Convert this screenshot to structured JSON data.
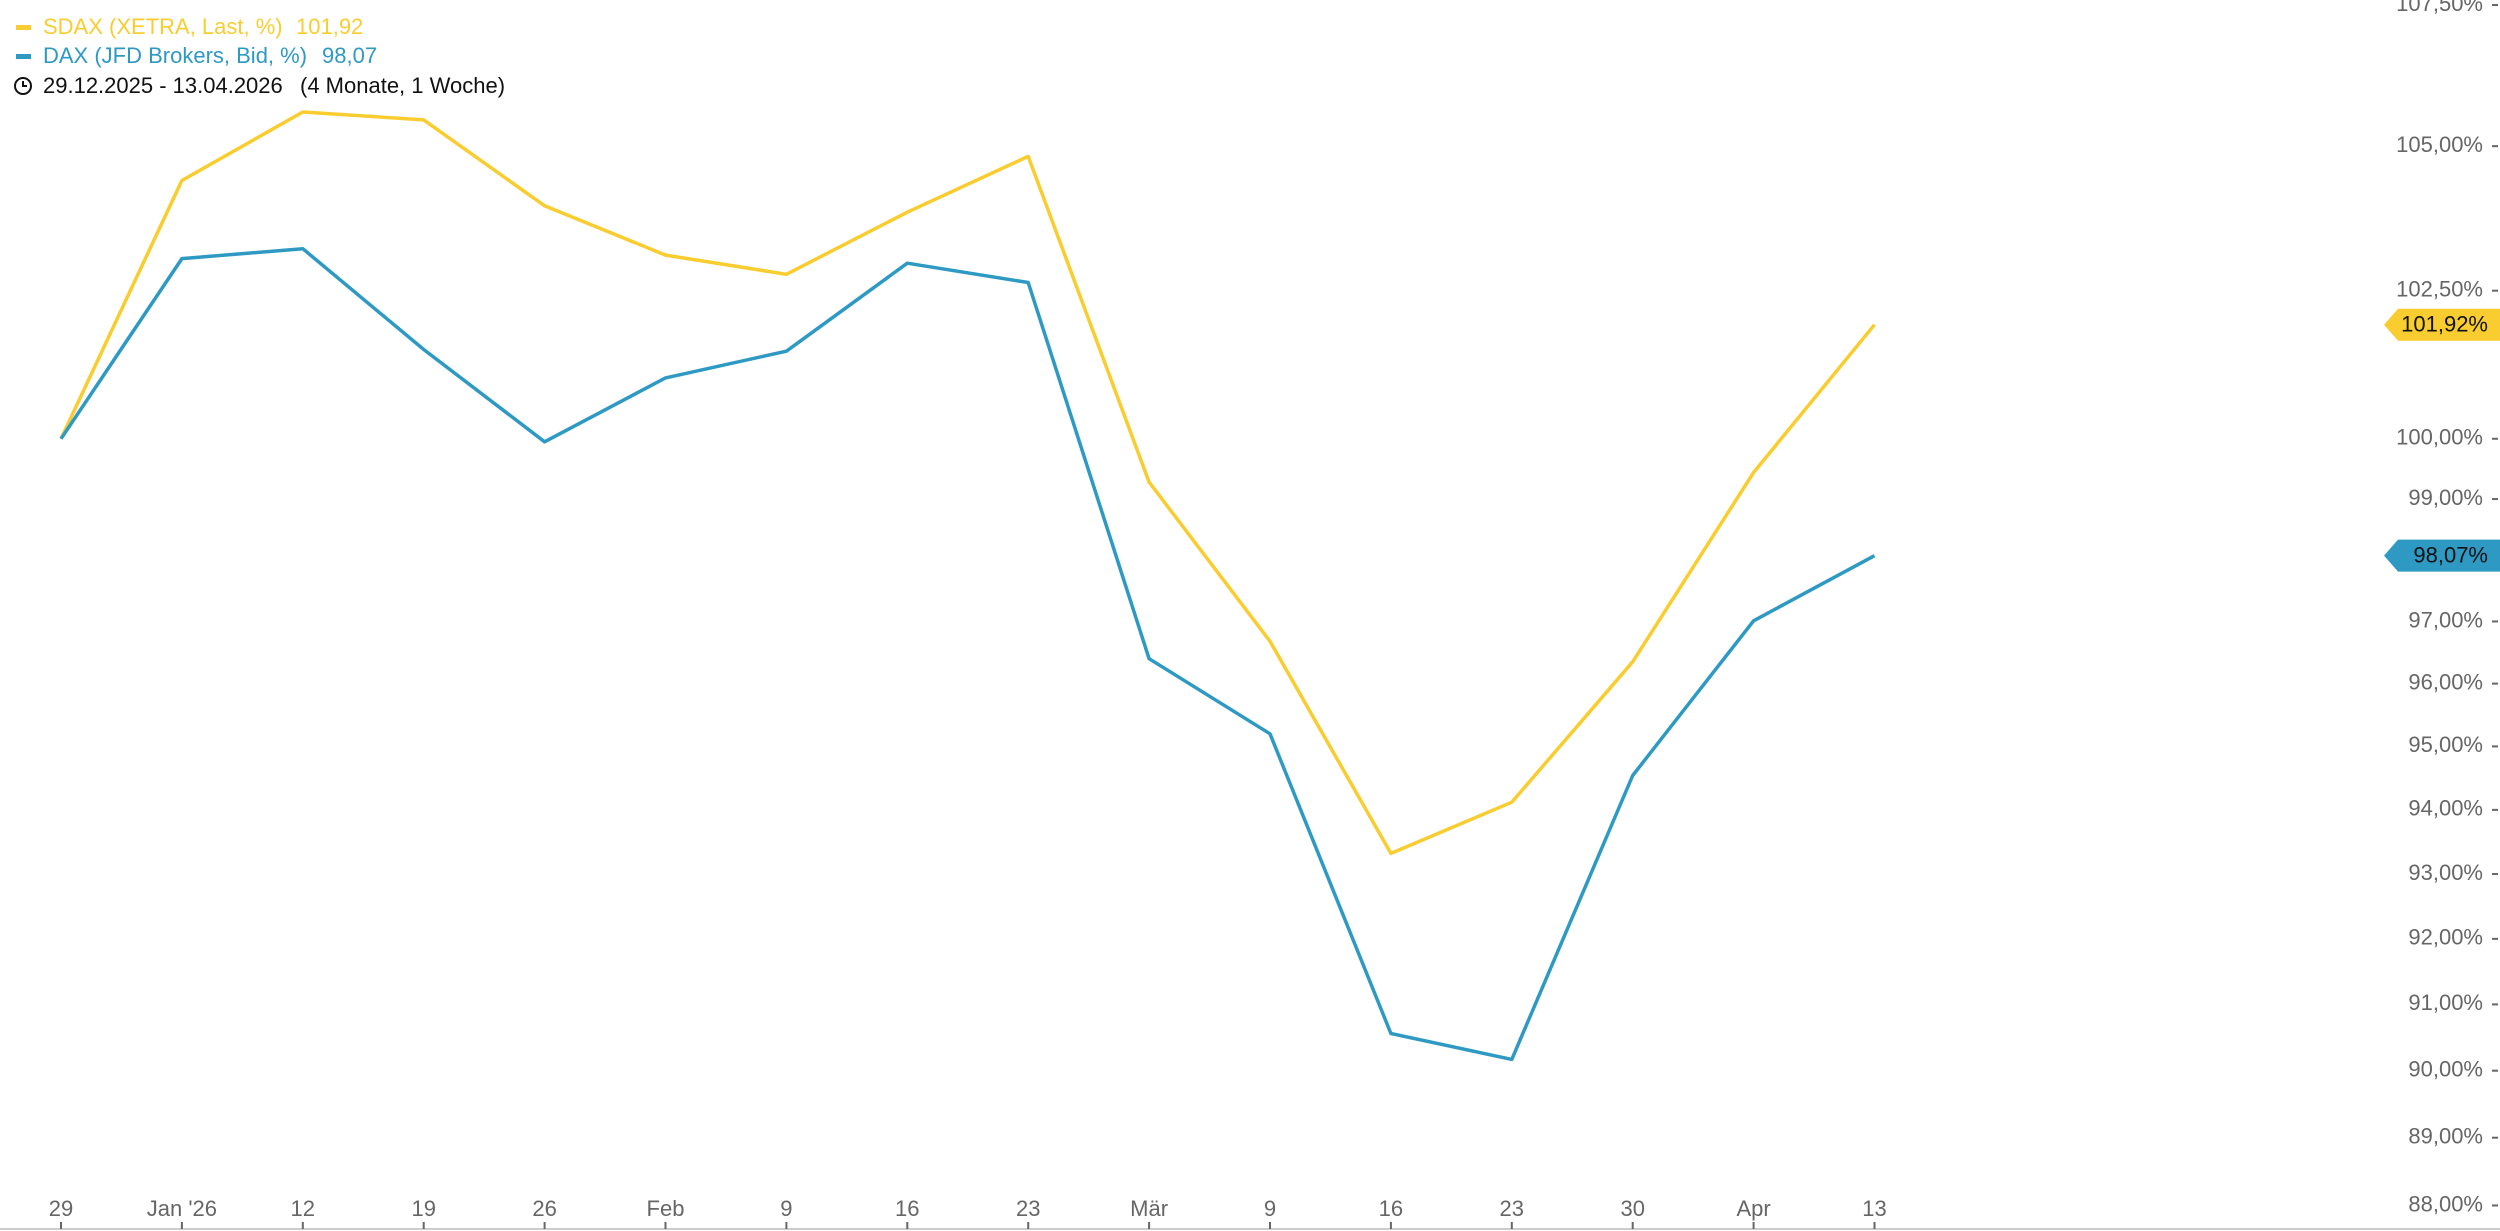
{
  "chart_data": {
    "type": "line",
    "legend": {
      "date_range": "29.12.2025 - 13.04.2026",
      "period": "(4 Monate, 1 Woche)"
    },
    "categories": [
      "29",
      "Jan '26",
      "12",
      "19",
      "26",
      "Feb",
      "9",
      "16",
      "23",
      "Mär",
      "9",
      "16",
      "23",
      "30",
      "Apr",
      "13"
    ],
    "series": [
      {
        "name": "SDAX (XETRA, Last, %)",
        "color": "#f9cd2f",
        "legend_value": "101,92",
        "tag_label": "101,92%",
        "values": [
          100.0,
          104.4,
          105.6,
          105.46,
          103.96,
          103.11,
          102.78,
          103.85,
          104.82,
          99.28,
          96.68,
          93.32,
          94.12,
          96.35,
          99.44,
          101.92
        ]
      },
      {
        "name": "DAX (JFD Brokers, Bid, %)",
        "color": "#2e9ac4",
        "legend_value": "98,07",
        "tag_label": "98,07%",
        "values": [
          100.0,
          103.05,
          103.22,
          101.5,
          99.95,
          101.02,
          101.47,
          102.97,
          102.64,
          96.4,
          95.2,
          90.56,
          90.17,
          94.54,
          97.01,
          98.07
        ]
      }
    ],
    "log_scale": true,
    "ylim": [
      87.67,
      107.59
    ],
    "yticks": [
      {
        "value": 107.5,
        "label": "107,50%"
      },
      {
        "value": 105,
        "label": "105,00%"
      },
      {
        "value": 102.5,
        "label": "102,50%"
      },
      {
        "value": 100,
        "label": "100,00%"
      },
      {
        "value": 99,
        "label": "99,00%"
      },
      {
        "value": 97,
        "label": "97,00%"
      },
      {
        "value": 96,
        "label": "96,00%"
      },
      {
        "value": 95,
        "label": "95,00%"
      },
      {
        "value": 94,
        "label": "94,00%"
      },
      {
        "value": 93,
        "label": "93,00%"
      },
      {
        "value": 92,
        "label": "92,00%"
      },
      {
        "value": 91,
        "label": "91,00%"
      },
      {
        "value": 90,
        "label": "90,00%"
      },
      {
        "value": 89,
        "label": "89,00%"
      },
      {
        "value": 88,
        "label": "88,00%"
      }
    ]
  }
}
